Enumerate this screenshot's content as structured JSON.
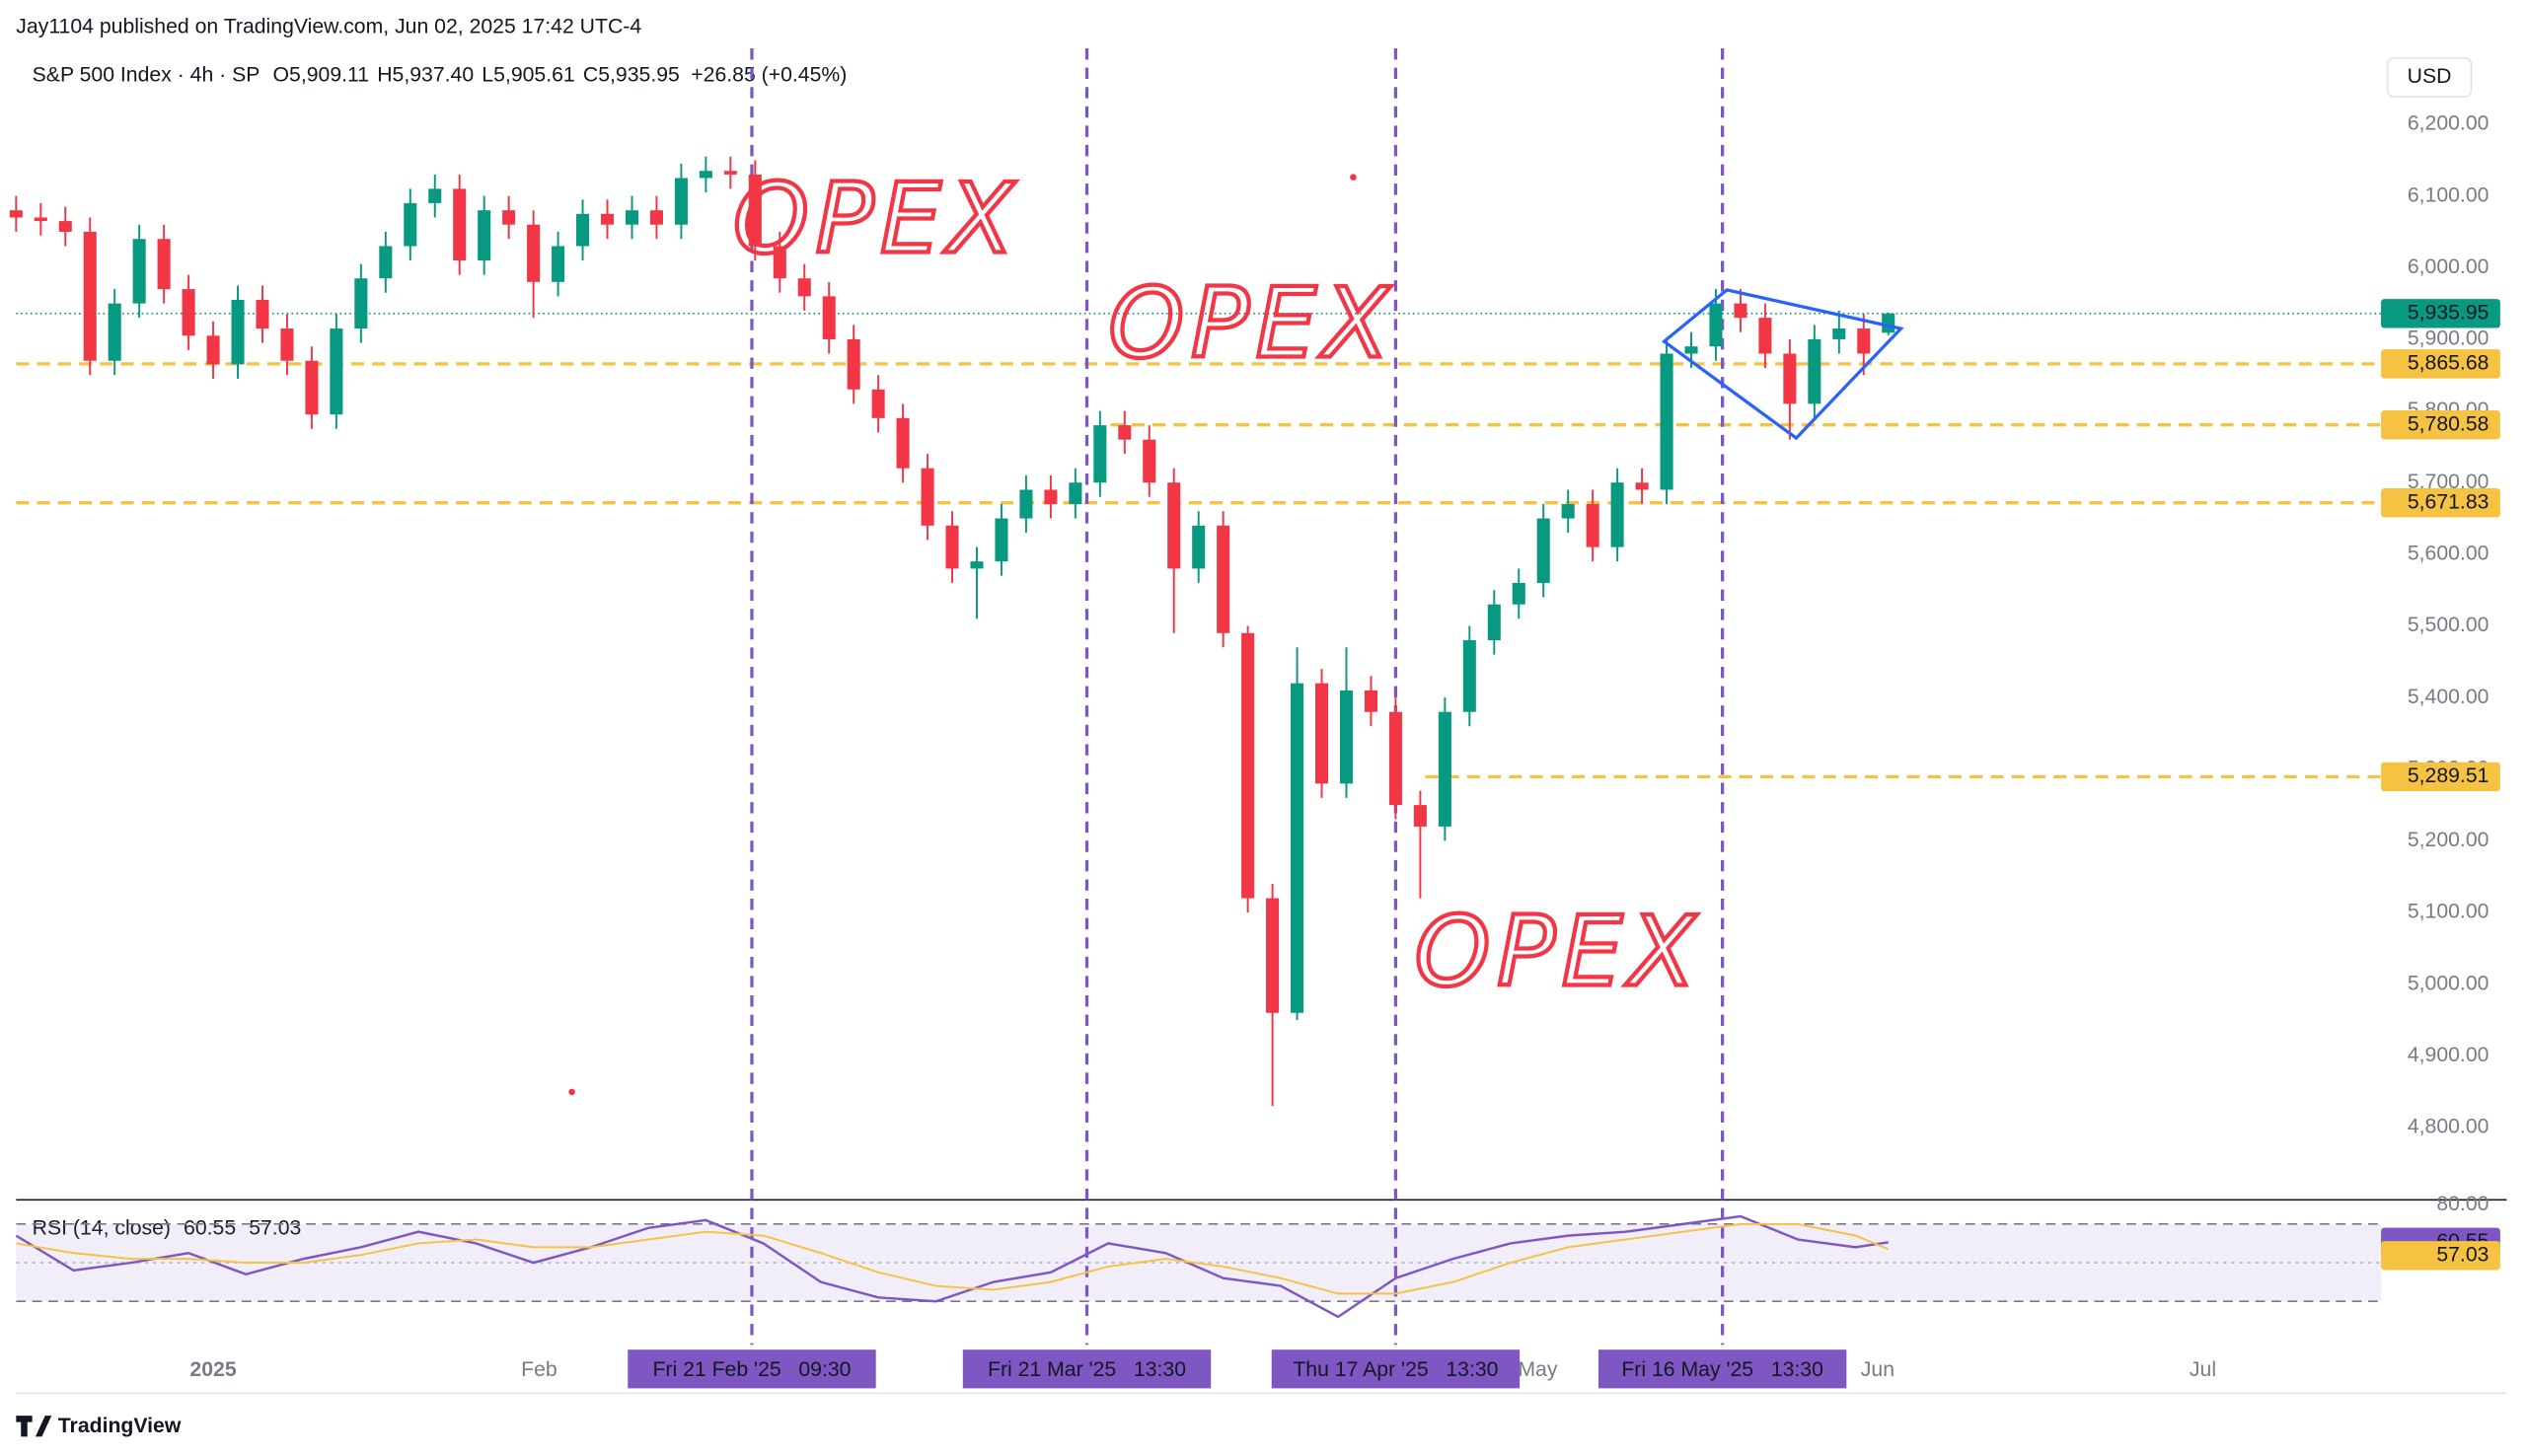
{
  "header": {
    "publisher": "Jay1104 published on TradingView.com, Jun 02, 2025 17:42 UTC-4",
    "currency": "USD",
    "brand": "TradingView"
  },
  "chart_data": [
    {
      "type": "candlestick",
      "title": "S&P 500 Index · 4h · SP",
      "legend": [
        {
          "key": "O",
          "value": 5909.11,
          "label": "5,909.11"
        },
        {
          "key": "H",
          "value": 5937.4,
          "label": "5,937.40"
        },
        {
          "key": "L",
          "value": 5905.61,
          "label": "5,905.61"
        },
        {
          "key": "C",
          "value": 5935.95,
          "label": "5,935.95"
        }
      ],
      "change": "+26.85 (+0.45%)",
      "up_color": "#089981",
      "down_color": "#f23645",
      "x": [
        0,
        3,
        6,
        9,
        12,
        15,
        18,
        21,
        24,
        27,
        30,
        33,
        36,
        39,
        42,
        45,
        48,
        51,
        54,
        57,
        60,
        63,
        66,
        69,
        72,
        75,
        78,
        81,
        84,
        87,
        90,
        93,
        96,
        99,
        102,
        105,
        108,
        111,
        114,
        117,
        120,
        123,
        126,
        129,
        132,
        135,
        138,
        141,
        144,
        147,
        150,
        153,
        156,
        159,
        162,
        165,
        168,
        171,
        174,
        177,
        180,
        183,
        186,
        189,
        192,
        195,
        198,
        201,
        204,
        207,
        210,
        213,
        216,
        219,
        222,
        225,
        228
      ],
      "open": [
        6080,
        6070,
        6065,
        6050,
        5870,
        5950,
        6040,
        5970,
        5905,
        5865,
        5955,
        5915,
        5870,
        5795,
        5915,
        5985,
        6030,
        6090,
        6110,
        6010,
        6080,
        6060,
        5980,
        6030,
        6075,
        6060,
        6080,
        6060,
        6125,
        6135,
        6130,
        6030,
        5985,
        5960,
        5900,
        5830,
        5790,
        5720,
        5640,
        5580,
        5590,
        5650,
        5690,
        5670,
        5700,
        5780,
        5760,
        5700,
        5580,
        5640,
        5490,
        5120,
        4960,
        5420,
        5280,
        5410,
        5380,
        5250,
        5220,
        5380,
        5480,
        5530,
        5560,
        5650,
        5670,
        5610,
        5700,
        5690,
        5880,
        5890,
        5950,
        5930,
        5880,
        5810,
        5900,
        5915,
        5909.11
      ],
      "high": [
        6100,
        6090,
        6085,
        6070,
        5970,
        6060,
        6060,
        5990,
        5925,
        5975,
        5975,
        5935,
        5890,
        5935,
        6005,
        6050,
        6110,
        6130,
        6130,
        6100,
        6100,
        6080,
        6050,
        6095,
        6095,
        6100,
        6100,
        6145,
        6155,
        6155,
        6150,
        6050,
        6005,
        5980,
        5920,
        5850,
        5810,
        5740,
        5660,
        5610,
        5670,
        5710,
        5710,
        5720,
        5800,
        5800,
        5780,
        5720,
        5660,
        5660,
        5500,
        5140,
        5470,
        5440,
        5470,
        5430,
        5400,
        5270,
        5400,
        5500,
        5550,
        5580,
        5670,
        5690,
        5690,
        5720,
        5720,
        5900,
        5910,
        5970,
        5970,
        5950,
        5900,
        5920,
        5940,
        5935,
        5937.4
      ],
      "low": [
        6050,
        6045,
        6030,
        5850,
        5850,
        5930,
        5950,
        5885,
        5845,
        5845,
        5895,
        5850,
        5775,
        5775,
        5895,
        5965,
        6010,
        6070,
        5990,
        5990,
        6040,
        5930,
        5960,
        6010,
        6040,
        6040,
        6040,
        6040,
        6105,
        6110,
        6010,
        5965,
        5940,
        5880,
        5810,
        5770,
        5700,
        5620,
        5560,
        5510,
        5570,
        5630,
        5650,
        5650,
        5680,
        5740,
        5680,
        5490,
        5560,
        5470,
        5100,
        4830,
        4950,
        5260,
        5260,
        5360,
        5230,
        5120,
        5200,
        5360,
        5460,
        5510,
        5540,
        5630,
        5590,
        5590,
        5670,
        5670,
        5860,
        5870,
        5910,
        5860,
        5760,
        5790,
        5880,
        5850,
        5905.61
      ],
      "close": [
        6070,
        6065,
        6050,
        5870,
        5950,
        6040,
        5970,
        5905,
        5865,
        5955,
        5915,
        5870,
        5795,
        5915,
        5985,
        6030,
        6090,
        6110,
        6010,
        6080,
        6060,
        5980,
        6030,
        6075,
        6060,
        6080,
        6060,
        6125,
        6135,
        6130,
        6030,
        5985,
        5960,
        5900,
        5830,
        5790,
        5720,
        5640,
        5580,
        5590,
        5650,
        5690,
        5670,
        5700,
        5780,
        5760,
        5700,
        5580,
        5640,
        5490,
        5120,
        4960,
        5420,
        5280,
        5410,
        5380,
        5250,
        5220,
        5380,
        5480,
        5530,
        5560,
        5650,
        5670,
        5610,
        5700,
        5690,
        5880,
        5890,
        5950,
        5930,
        5880,
        5810,
        5900,
        5915,
        5880,
        5935.95
      ],
      "xlim": [
        0,
        288
      ],
      "ylim": [
        4699,
        6306
      ],
      "grid": false,
      "yticks": [
        {
          "value": 4800,
          "label": "4,800.00"
        },
        {
          "value": 4900,
          "label": "4,900.00"
        },
        {
          "value": 5000,
          "label": "5,000.00"
        },
        {
          "value": 5100,
          "label": "5,100.00"
        },
        {
          "value": 5200,
          "label": "5,200.00"
        },
        {
          "value": 5300,
          "label": "5,300.00"
        },
        {
          "value": 5400,
          "label": "5,400.00"
        },
        {
          "value": 5500,
          "label": "5,500.00"
        },
        {
          "value": 5600,
          "label": "5,600.00"
        },
        {
          "value": 5700,
          "label": "5,700.00"
        },
        {
          "value": 5800,
          "label": "5,800.00"
        },
        {
          "value": 5900,
          "label": "5,900.00"
        },
        {
          "value": 6000,
          "label": "6,000.00"
        },
        {
          "value": 6100,
          "label": "6,100.00"
        },
        {
          "value": 6200,
          "label": "6,200.00"
        }
      ],
      "xticks": [
        {
          "value": 24,
          "label": "2025"
        },
        {
          "value": 63.7,
          "label": "Feb"
        },
        {
          "value": 185.3,
          "label": "May"
        },
        {
          "value": 226.7,
          "label": "Jun"
        },
        {
          "value": 266.3,
          "label": "Jul"
        }
      ],
      "markers": [
        {
          "value": 89.6,
          "label": "Fri 21 Feb '25   09:30"
        },
        {
          "value": 130.4,
          "label": "Fri 21 Mar '25   13:30"
        },
        {
          "value": 168,
          "label": "Thu 17 Apr '25   13:30"
        },
        {
          "value": 207.8,
          "label": "Fri 16 May '25   13:30"
        }
      ],
      "marker_color": "#7e57c2",
      "last_price": {
        "value": 5935.95,
        "label": "5,935.95"
      },
      "levels": [
        {
          "value": 5865.68,
          "label": "5,865.68",
          "x_start": 0
        },
        {
          "value": 5780.58,
          "label": "5,780.58",
          "x_start": 133.3
        },
        {
          "value": 5671.83,
          "label": "5,671.83",
          "x_start": 0
        },
        {
          "value": 5289.51,
          "label": "5,289.51",
          "x_start": 171.6
        }
      ],
      "level_color": "#f5c242",
      "annotations": [
        "OPEX",
        "OPEX",
        "OPEX"
      ]
    },
    {
      "type": "line",
      "title": "RSI (14, close)",
      "x": [
        0,
        7,
        14,
        21,
        28,
        35,
        42,
        49,
        56,
        63,
        70,
        77,
        84,
        91,
        98,
        105,
        112,
        119,
        126,
        133,
        140,
        147,
        154,
        161,
        168,
        175,
        182,
        189,
        196,
        203,
        210,
        217,
        224,
        228
      ],
      "series": [
        {
          "color": "#7e57c2",
          "values": [
            64,
            46,
            50,
            55,
            44,
            52,
            58,
            66,
            60,
            50,
            58,
            68,
            72,
            60,
            40,
            32,
            30,
            40,
            45,
            60,
            55,
            42,
            38,
            22,
            42,
            52,
            60,
            64,
            66,
            70,
            74,
            62,
            58,
            60.55
          ]
        },
        {
          "color": "#f5c242",
          "values": [
            60,
            55,
            52,
            52,
            50,
            50,
            54,
            60,
            62,
            58,
            58,
            62,
            66,
            64,
            55,
            45,
            38,
            36,
            40,
            48,
            52,
            48,
            42,
            34,
            34,
            40,
            50,
            58,
            62,
            66,
            70,
            70,
            64,
            57.03
          ]
        }
      ],
      "ylim": [
        7.5,
        82.5
      ],
      "yticks": [
        {
          "value": 80,
          "label": "80.00"
        }
      ],
      "levels": [
        70,
        50,
        30
      ]
    }
  ]
}
